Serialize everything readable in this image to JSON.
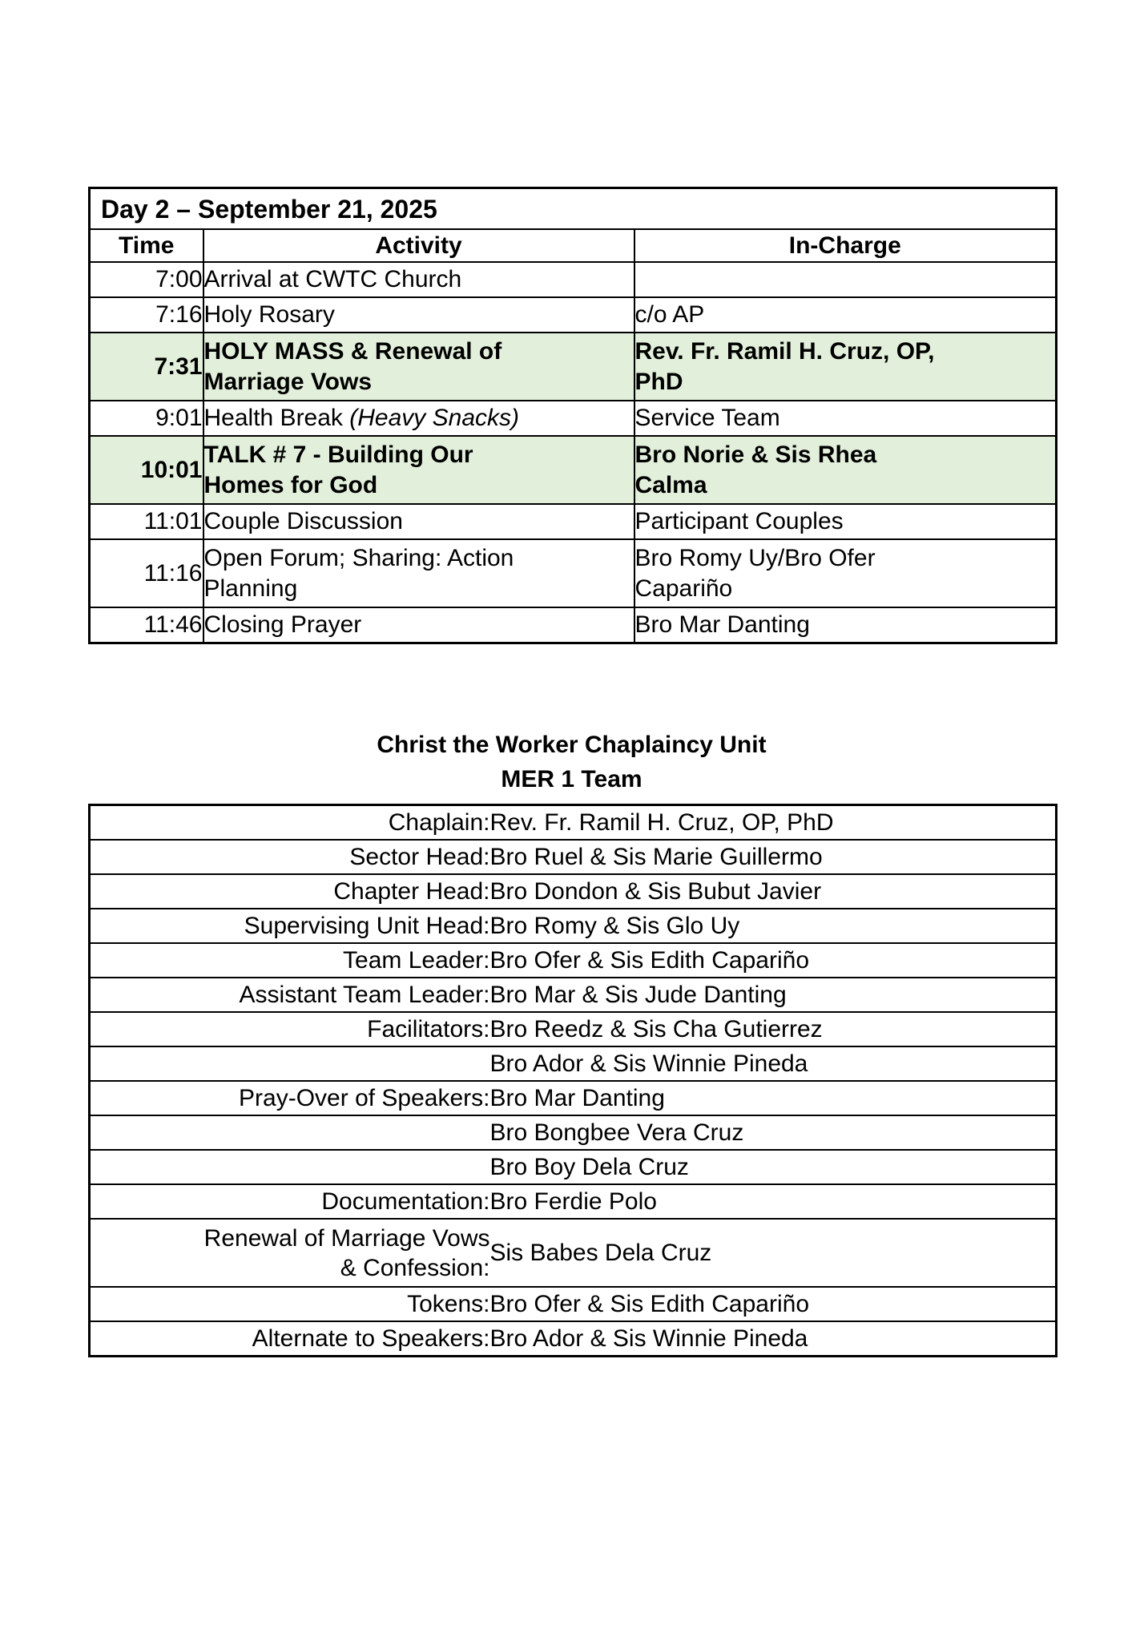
{
  "colors": {
    "highlight_row": "#e2efda",
    "border": "#000000",
    "text": "#000000"
  },
  "schedule_table": {
    "title": "Day 2 – September 21, 2025",
    "columns": [
      "Time",
      "Activity",
      "In-Charge"
    ],
    "rows": [
      {
        "time": "7:00",
        "activity": "Arrival at CWTC Church",
        "activity_italic": "",
        "incharge": "",
        "highlight": false
      },
      {
        "time": "7:16",
        "activity": "Holy Rosary",
        "activity_italic": "",
        "incharge": "c/o AP",
        "highlight": false
      },
      {
        "time": "7:31",
        "activity": "HOLY MASS & Renewal of\nMarriage Vows",
        "activity_italic": "",
        "incharge": "Rev. Fr. Ramil H. Cruz, OP,\nPhD",
        "highlight": true
      },
      {
        "time": "9:01",
        "activity": "Health Break ",
        "activity_italic": "(Heavy Snacks)",
        "incharge": "Service Team",
        "highlight": false
      },
      {
        "time": "10:01",
        "activity": "TALK # 7 - Building Our\nHomes for God",
        "activity_italic": "",
        "incharge": "Bro Norie & Sis Rhea\nCalma",
        "highlight": true
      },
      {
        "time": "11:01",
        "activity": "Couple Discussion",
        "activity_italic": "",
        "incharge": "Participant Couples",
        "highlight": false
      },
      {
        "time": "11:16",
        "activity": "Open Forum; Sharing: Action\nPlanning",
        "activity_italic": "",
        "incharge": "Bro Romy Uy/Bro Ofer\nCapariño",
        "highlight": false
      },
      {
        "time": "11:46",
        "activity": "Closing Prayer",
        "activity_italic": "",
        "incharge": "Bro Mar Danting",
        "highlight": false
      }
    ]
  },
  "team_section": {
    "heading_line1": "Christ the Worker Chaplaincy Unit",
    "heading_line2": "MER 1 Team",
    "rows": [
      {
        "role": "Chaplain:",
        "name": "Rev. Fr. Ramil H. Cruz, OP, PhD"
      },
      {
        "role": "Sector Head:",
        "name": "Bro Ruel & Sis Marie Guillermo"
      },
      {
        "role": "Chapter Head:",
        "name": "Bro Dondon & Sis Bubut Javier"
      },
      {
        "role": "Supervising Unit Head:",
        "name": "Bro Romy & Sis Glo Uy"
      },
      {
        "role": "Team Leader:",
        "name": "Bro Ofer & Sis Edith Capariño"
      },
      {
        "role": "Assistant Team Leader:",
        "name": "Bro Mar & Sis Jude Danting"
      },
      {
        "role": "Facilitators:",
        "name": "Bro Reedz & Sis Cha Gutierrez"
      },
      {
        "role": "",
        "name": "Bro Ador & Sis Winnie Pineda"
      },
      {
        "role": "Pray-Over of Speakers:",
        "name": "Bro Mar Danting"
      },
      {
        "role": "",
        "name": "Bro Bongbee Vera Cruz"
      },
      {
        "role": "",
        "name": "Bro Boy Dela Cruz"
      },
      {
        "role": "Documentation:",
        "name": "Bro Ferdie Polo"
      },
      {
        "role": "Renewal of Marriage Vows\n& Confession:",
        "name": "Sis Babes Dela Cruz"
      },
      {
        "role": "Tokens:",
        "name": "Bro Ofer & Sis Edith Capariño"
      },
      {
        "role": "Alternate to Speakers:",
        "name": "Bro Ador & Sis Winnie Pineda"
      }
    ]
  }
}
